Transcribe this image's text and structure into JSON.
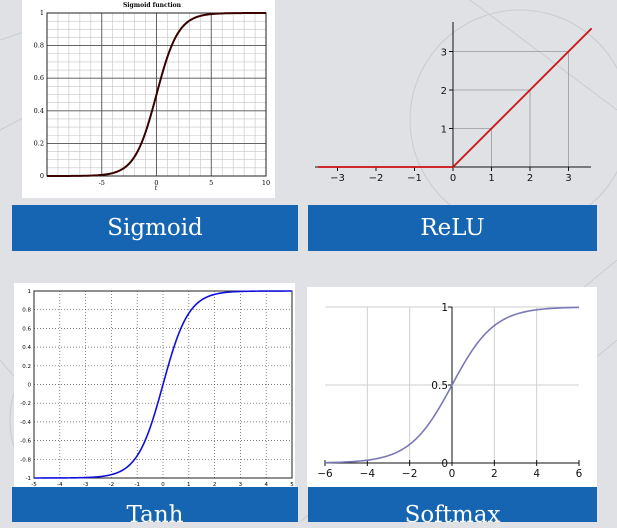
{
  "colors": {
    "banner": "#1565b3",
    "sigmoid_curve": "#3a0000",
    "relu_line": "#cc1111",
    "tanh_curve": "#1010dd",
    "softmax_curve": "#7a78b8"
  },
  "banners": {
    "sigmoid": "Sigmoid",
    "relu": "ReLU",
    "tanh": "Tanh",
    "softmax": "Softmax"
  },
  "chart_data": [
    {
      "type": "line",
      "title": "Sigmoid function",
      "xlabel": "t",
      "ylabel": "",
      "function": "sigmoid",
      "xlim": [
        -10,
        10
      ],
      "ylim": [
        0,
        1
      ],
      "x_ticks": [
        "-5",
        "0",
        "5",
        "10"
      ],
      "y_ticks": [
        "0",
        "0.2",
        "0.4",
        "0.6",
        "0.8",
        "1"
      ],
      "grid": true,
      "series": [
        {
          "x": [
            -10,
            -5,
            -2,
            -1,
            0,
            1,
            2,
            5,
            10
          ],
          "y": [
            4.54e-05,
            0.0067,
            0.119,
            0.269,
            0.5,
            0.731,
            0.881,
            0.9933,
            0.99995
          ]
        }
      ]
    },
    {
      "type": "line",
      "title": "",
      "function": "relu",
      "xlim": [
        -3.5,
        3.6
      ],
      "ylim": [
        0,
        3.6
      ],
      "x_ticks": [
        "−3",
        "−2",
        "−1",
        "0",
        "1",
        "2",
        "3"
      ],
      "y_ticks": [
        "1",
        "2",
        "3"
      ],
      "grid": false,
      "series": [
        {
          "x": [
            -3.5,
            0,
            3.6
          ],
          "y": [
            0,
            0,
            3.6
          ]
        }
      ]
    },
    {
      "type": "line",
      "title": "",
      "function": "tanh",
      "xlim": [
        -5,
        5
      ],
      "ylim": [
        -1,
        1
      ],
      "x_ticks": [
        "-5",
        "-4",
        "-3",
        "-2",
        "-1",
        "0",
        "1",
        "2",
        "3",
        "4",
        "5"
      ],
      "y_ticks": [
        "-1",
        "-0.8",
        "-0.6",
        "-0.4",
        "-0.2",
        "0",
        "0.2",
        "0.4",
        "0.6",
        "0.8",
        "1"
      ],
      "grid": true,
      "series": [
        {
          "x": [
            -5,
            -2,
            -1,
            0,
            1,
            2,
            5
          ],
          "y": [
            -0.9999,
            -0.964,
            -0.762,
            0,
            0.762,
            0.964,
            0.9999
          ]
        }
      ]
    },
    {
      "type": "line",
      "title": "",
      "function": "sigmoid",
      "xlim": [
        -6,
        6
      ],
      "ylim": [
        0,
        1
      ],
      "x_ticks": [
        "−6",
        "−4",
        "−2",
        "0",
        "2",
        "4",
        "6"
      ],
      "y_ticks": [
        "0",
        "0.5",
        "1"
      ],
      "grid": true,
      "series": [
        {
          "x": [
            -6,
            -4,
            -2,
            0,
            2,
            4,
            6
          ],
          "y": [
            0.0025,
            0.018,
            0.119,
            0.5,
            0.881,
            0.982,
            0.9975
          ]
        }
      ]
    }
  ]
}
